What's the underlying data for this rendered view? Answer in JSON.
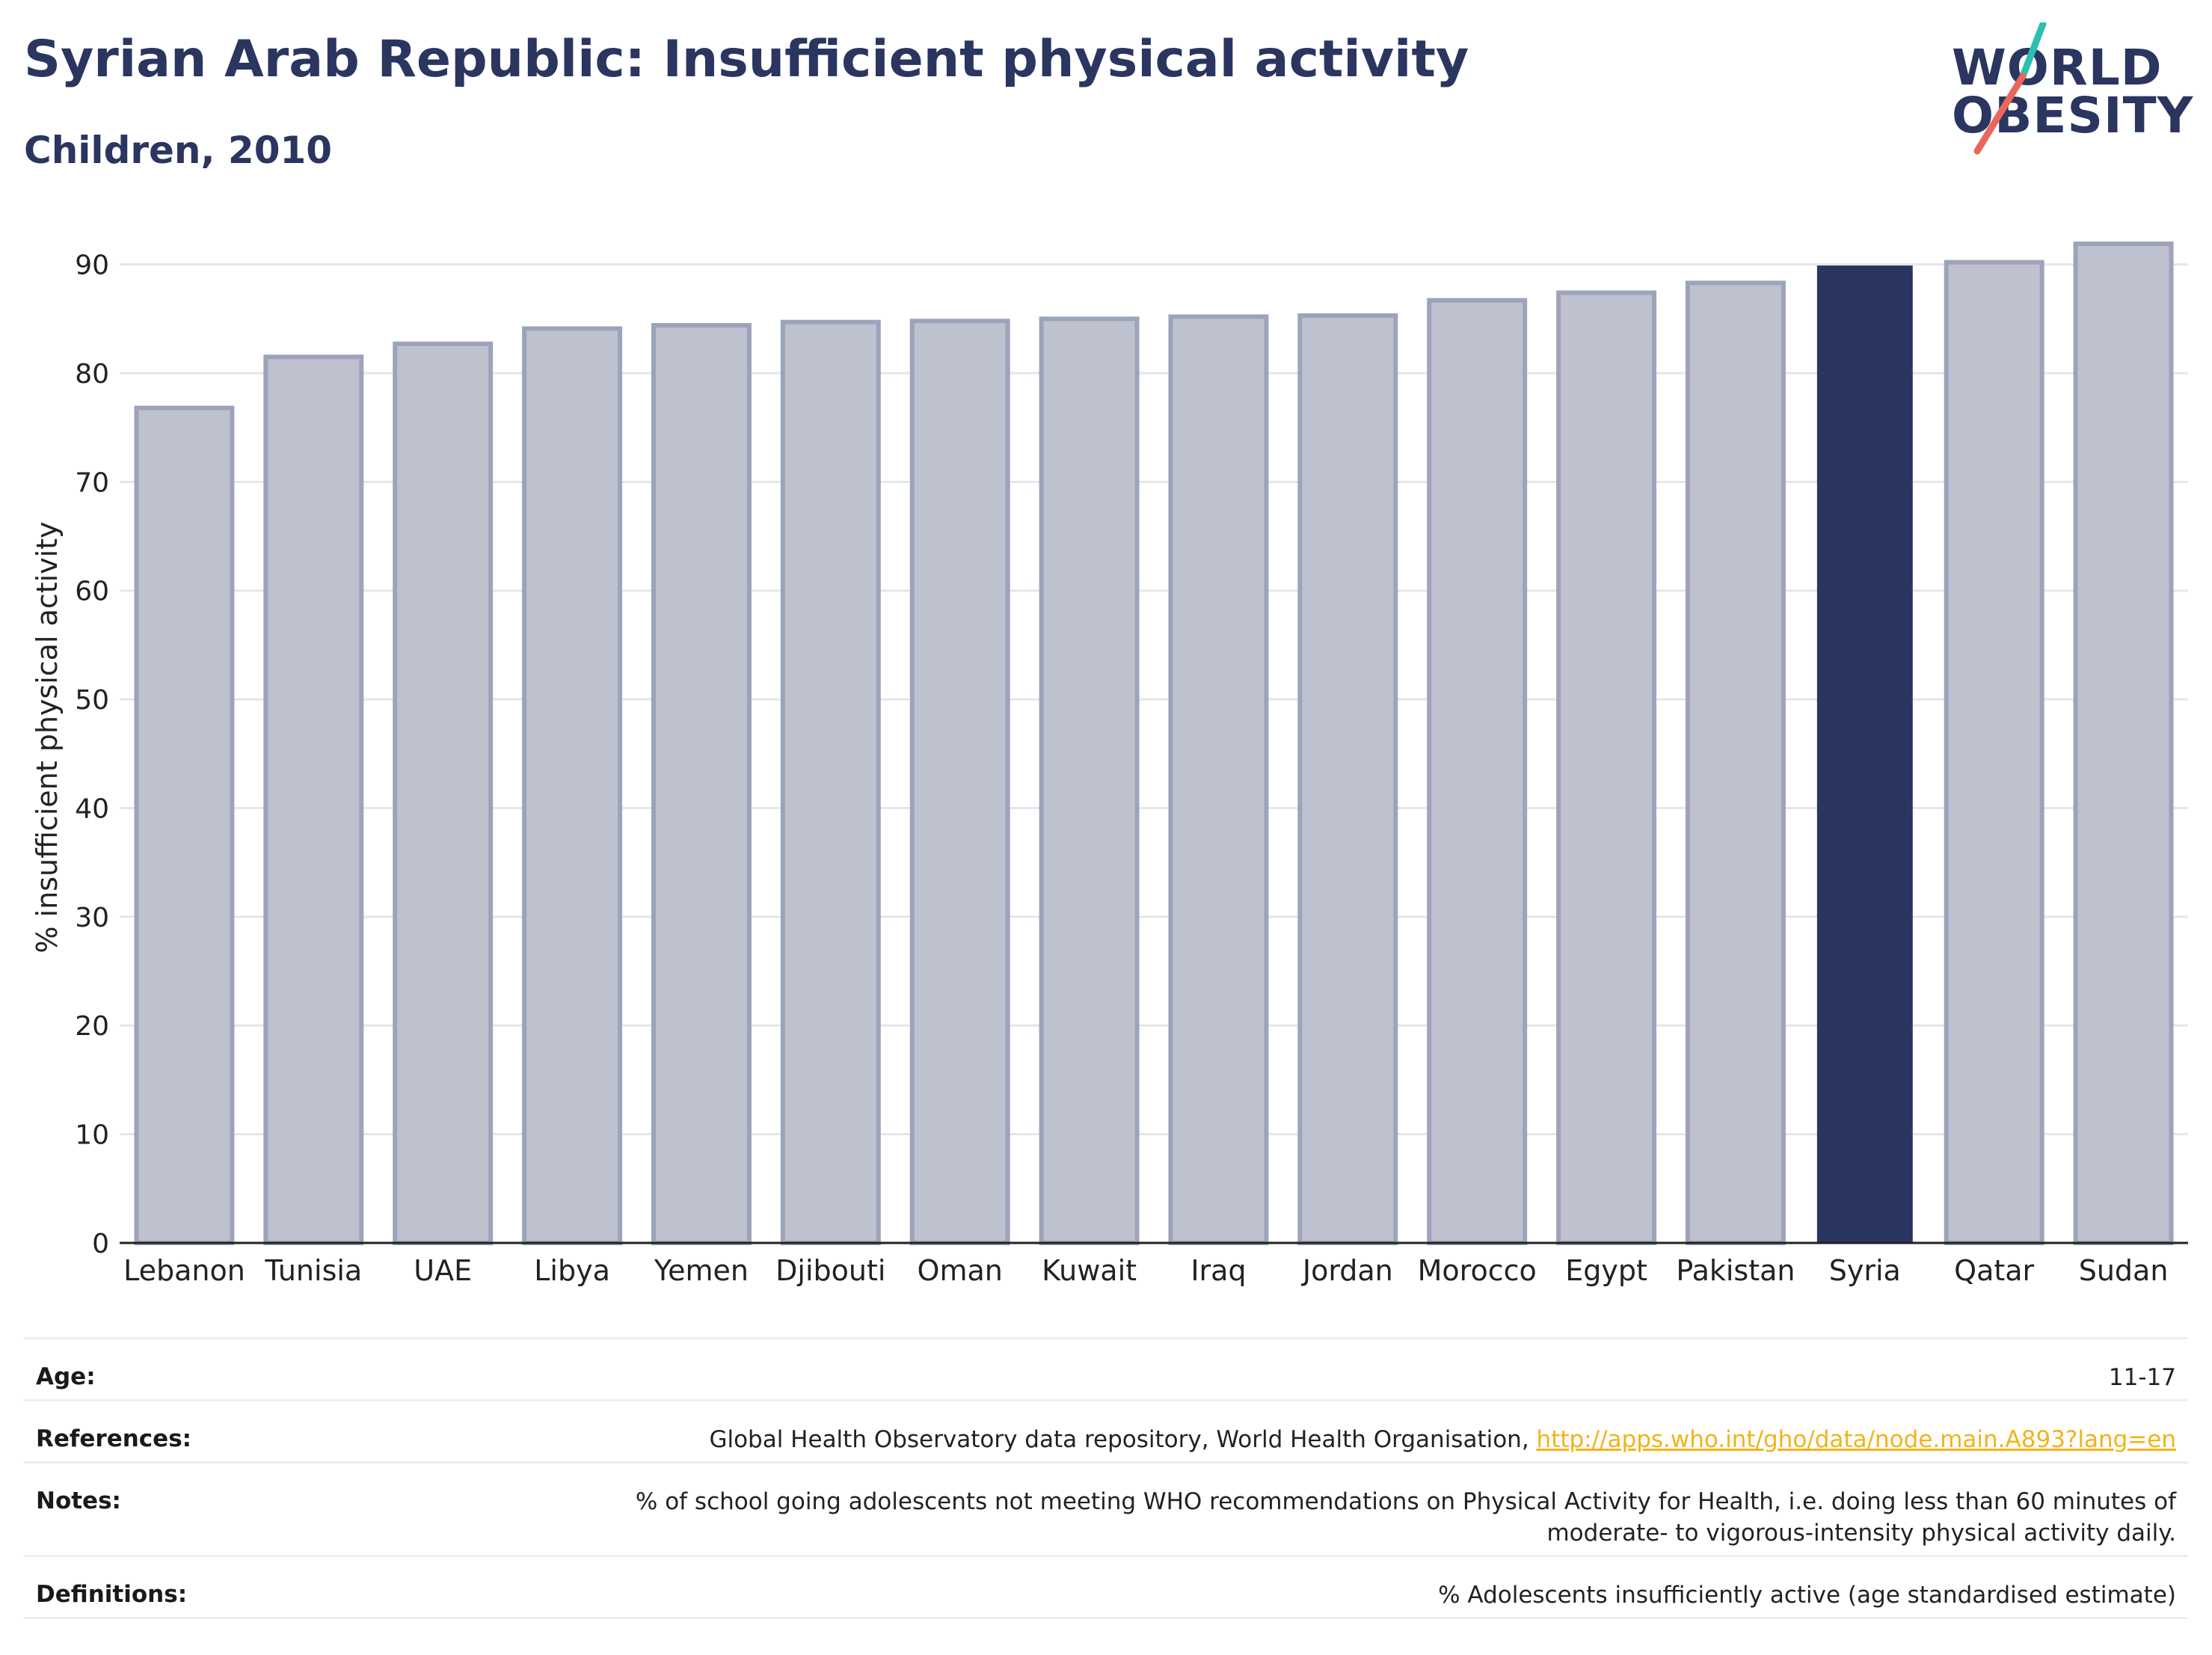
{
  "header": {
    "title": "Syrian Arab Republic: Insufficient physical activity",
    "subtitle": "Children, 2010"
  },
  "logo": {
    "line1": "WORLD",
    "line2": "OBESITY",
    "colors": {
      "text": "#2a3560",
      "slash_top": "#2bbfb0",
      "slash_bottom": "#e8675a"
    }
  },
  "chart_data": {
    "type": "bar",
    "ylabel": "% insufficient physical activity",
    "xlabel": "",
    "ylim": [
      0,
      93
    ],
    "yticks": [
      0,
      10,
      20,
      30,
      40,
      50,
      60,
      70,
      80,
      90
    ],
    "grid": true,
    "categories": [
      "Lebanon",
      "Tunisia",
      "UAE",
      "Libya",
      "Yemen",
      "Djibouti",
      "Oman",
      "Kuwait",
      "Iraq",
      "Jordan",
      "Morocco",
      "Egypt",
      "Pakistan",
      "Syria",
      "Qatar",
      "Sudan"
    ],
    "values": [
      76.8,
      81.5,
      82.7,
      84.1,
      84.4,
      84.7,
      84.8,
      85.0,
      85.2,
      85.3,
      86.7,
      87.4,
      88.3,
      89.9,
      90.2,
      91.9
    ],
    "highlight": "Syria",
    "colors": {
      "bar": "#bec2ce",
      "bar_outline": "#9ca3ba",
      "highlight": "#2a3560",
      "grid": "#e3e6ec",
      "axis": "#222222"
    }
  },
  "meta": {
    "age": {
      "label": "Age:",
      "value": "11-17"
    },
    "references": {
      "label": "References:",
      "text": "Global Health Observatory data repository, World Health Organisation, ",
      "link": "http://apps.who.int/gho/data/node.main.A893?lang=en"
    },
    "notes": {
      "label": "Notes:",
      "value": "% of school going adolescents not meeting WHO recommendations on Physical Activity for Health, i.e. doing less than 60 minutes of moderate- to vigorous-intensity physical activity daily."
    },
    "definitions": {
      "label": "Definitions:",
      "value": "% Adolescents insufficiently active (age standardised estimate)"
    }
  }
}
